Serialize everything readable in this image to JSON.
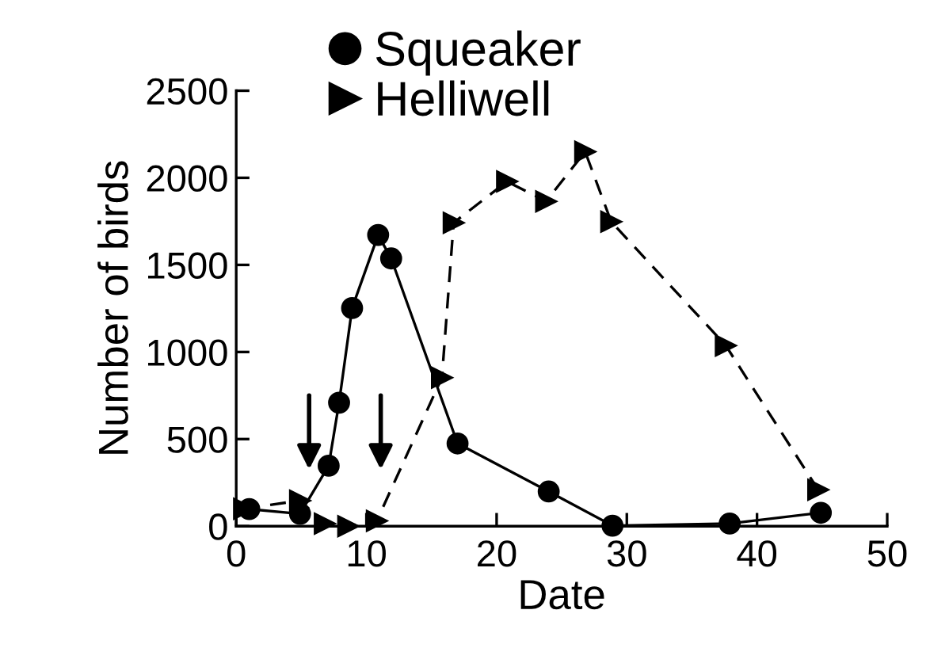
{
  "chart_data": {
    "type": "line",
    "xlabel": "Date",
    "ylabel": "Number of birds",
    "xlim": [
      0,
      50
    ],
    "ylim": [
      0,
      2500
    ],
    "xticks": [
      0,
      10,
      20,
      30,
      40,
      50
    ],
    "yticks": [
      0,
      500,
      1000,
      1500,
      2000,
      2500
    ],
    "grid": false,
    "legend": "top",
    "series": [
      {
        "name": "Squeaker",
        "color": "#000000",
        "marker": "circle",
        "line_style": "solid",
        "x": [
          1.0,
          4.9,
          7.1,
          7.9,
          8.9,
          10.9,
          11.9,
          17.0,
          24.0,
          28.9,
          37.9,
          44.9
        ],
        "values": [
          98,
          71,
          347,
          709,
          1252,
          1672,
          1537,
          475,
          199,
          3,
          15,
          77
        ]
      },
      {
        "name": "Helliwell",
        "color": "#000000",
        "marker": "triangle",
        "line_style": "dashed",
        "x": [
          0.6,
          4.9,
          6.8,
          8.6,
          10.8,
          15.8,
          16.7,
          20.8,
          23.8,
          26.8,
          28.8,
          37.6,
          44.7
        ],
        "values": [
          100,
          147,
          15,
          0,
          31,
          853,
          1742,
          1979,
          1865,
          2150,
          1748,
          1037,
          209
        ]
      }
    ]
  }
}
